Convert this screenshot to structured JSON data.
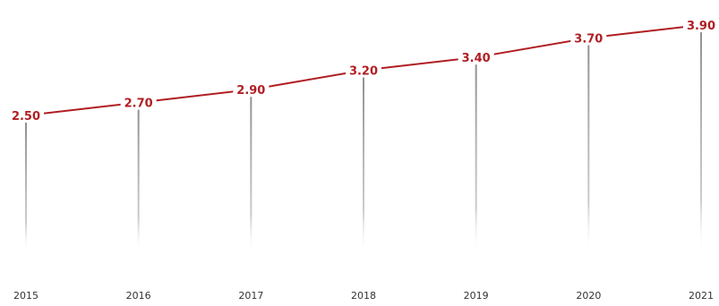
{
  "chart_data": {
    "type": "line",
    "title": "",
    "xlabel": "",
    "ylabel": "",
    "categories": [
      "2015",
      "2016",
      "2017",
      "2018",
      "2019",
      "2020",
      "2021"
    ],
    "series": [
      {
        "values": [
          2.5,
          2.7,
          2.9,
          3.2,
          3.4,
          3.7,
          3.9
        ]
      }
    ],
    "data_labels": [
      "2.50",
      "2.70",
      "2.90",
      "3.20",
      "3.40",
      "3.70",
      "3.90"
    ],
    "grid": false,
    "legend": "none",
    "colors": {
      "line": "#b01e23",
      "label": "#b01e23",
      "drop_line": "#9a9a9a",
      "tick_text": "#333333"
    }
  }
}
